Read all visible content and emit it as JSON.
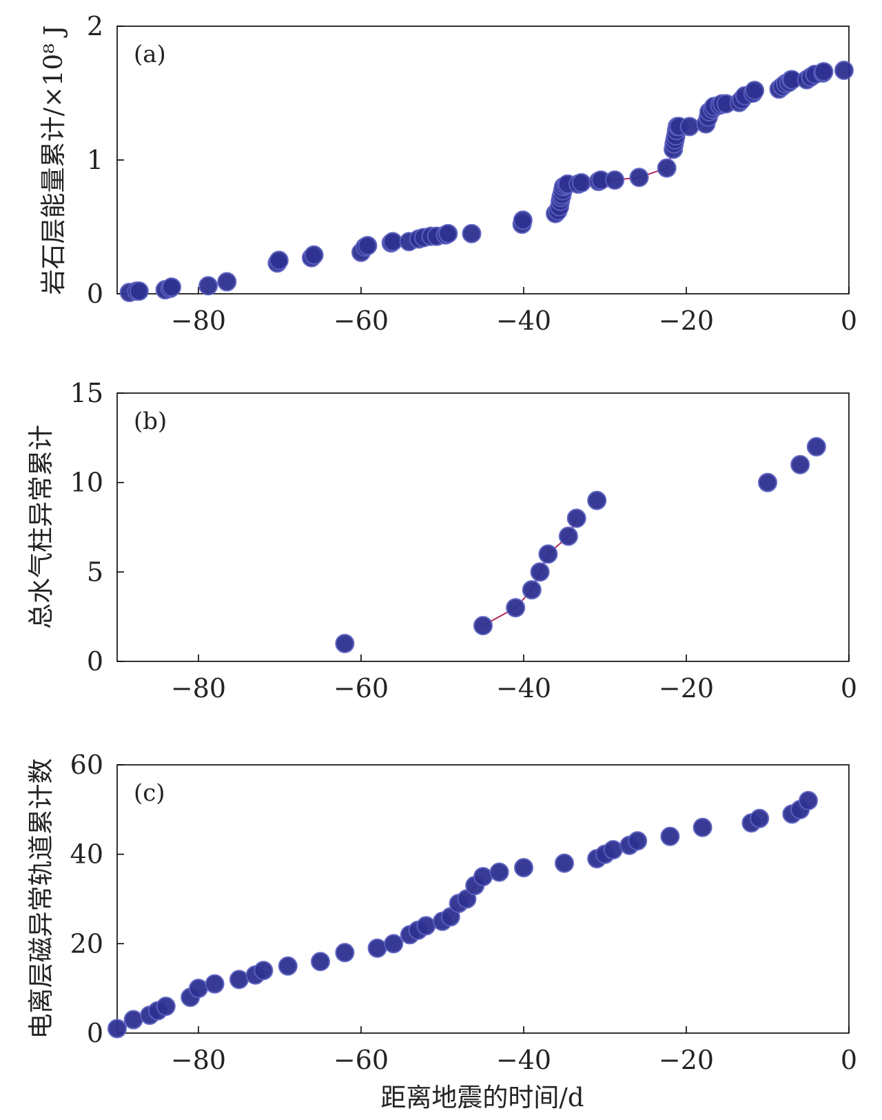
{
  "colors": {
    "marker_fill": "#2e3191",
    "marker_stroke": "#5a5fbf",
    "connector": "#b0285a"
  },
  "chart_data": [
    {
      "type": "scatter",
      "panel_label": "(a)",
      "ylabel": "岩石层能量累计/×10⁸ J",
      "xlabel": "",
      "xlim": [
        -90,
        0
      ],
      "ylim": [
        0,
        2
      ],
      "xticks": [
        -80,
        -60,
        -40,
        -20,
        0
      ],
      "xtick_labels": [
        "−80",
        "−60",
        "−40",
        "−20",
        "0"
      ],
      "yticks": [
        0,
        1,
        2
      ],
      "ytick_labels": [
        "0",
        "1",
        "2"
      ],
      "connected_segment": {
        "x_from": -35.5,
        "x_to": -21.5
      },
      "series": [
        {
          "x": [
            -88.5,
            -87.6,
            -87.3,
            -84.1,
            -83.5,
            -83.3,
            -78.8,
            -76.5,
            -70.3,
            -70.1,
            -66.1,
            -65.8,
            -60,
            -59.5,
            -59.2,
            -56.3,
            -56.1,
            -54.1,
            -52.9,
            -52.3,
            -51.4,
            -50.7,
            -49.6,
            -49.3,
            -46.4,
            -40.2,
            -40.1,
            -36.1,
            -35.8,
            -35.6,
            -35.5,
            -35.4,
            -35.3,
            -35.2,
            -35.1,
            -34.8,
            -34.6,
            -33.3,
            -32.9,
            -30.8,
            -30.5,
            -28.8,
            -25.8,
            -22.4,
            -21.6,
            -21.5,
            -21.4,
            -21.3,
            -21.2,
            -21.1,
            -20.9,
            -19.6,
            -17.6,
            -17.3,
            -17.2,
            -16.8,
            -16.6,
            -15.9,
            -15.6,
            -15.1,
            -13.5,
            -13.2,
            -12.8,
            -11.8,
            -11.6,
            -8.6,
            -8.2,
            -7.8,
            -7.4,
            -7.1,
            -7,
            -5.2,
            -4.7,
            -4.2,
            -3.2,
            -3.1,
            -0.6
          ],
          "y": [
            0.01,
            0.02,
            0.02,
            0.03,
            0.04,
            0.05,
            0.06,
            0.09,
            0.23,
            0.25,
            0.27,
            0.29,
            0.31,
            0.35,
            0.36,
            0.38,
            0.39,
            0.39,
            0.41,
            0.42,
            0.43,
            0.43,
            0.44,
            0.45,
            0.45,
            0.52,
            0.55,
            0.6,
            0.62,
            0.65,
            0.69,
            0.72,
            0.74,
            0.77,
            0.8,
            0.81,
            0.82,
            0.82,
            0.83,
            0.84,
            0.85,
            0.85,
            0.87,
            0.94,
            1.08,
            1.12,
            1.15,
            1.18,
            1.22,
            1.25,
            1.25,
            1.25,
            1.27,
            1.32,
            1.36,
            1.38,
            1.4,
            1.41,
            1.42,
            1.42,
            1.43,
            1.45,
            1.48,
            1.5,
            1.52,
            1.53,
            1.55,
            1.57,
            1.58,
            1.6,
            1.6,
            1.6,
            1.62,
            1.64,
            1.65,
            1.66,
            1.67
          ]
        }
      ]
    },
    {
      "type": "scatter",
      "panel_label": "(b)",
      "ylabel": "总水气柱异常累计",
      "xlabel": "",
      "xlim": [
        -90,
        0
      ],
      "ylim": [
        0,
        15
      ],
      "xticks": [
        -80,
        -60,
        -40,
        -20,
        0
      ],
      "xtick_labels": [
        "−80",
        "−60",
        "−40",
        "−20",
        "0"
      ],
      "yticks": [
        0,
        5,
        10,
        15
      ],
      "ytick_labels": [
        "0",
        "5",
        "10",
        "15"
      ],
      "connected_segment": {
        "x_from": -45,
        "x_to": -33.5
      },
      "series": [
        {
          "x": [
            -62,
            -45,
            -41,
            -39,
            -38,
            -37,
            -34.5,
            -33.5,
            -31,
            -10,
            -6,
            -4
          ],
          "y": [
            1,
            2,
            3,
            4,
            5,
            6,
            7,
            8,
            9,
            10,
            11,
            12
          ]
        }
      ]
    },
    {
      "type": "scatter",
      "panel_label": "(c)",
      "ylabel": "电离层磁异常轨道累计数",
      "xlabel": "距离地震的时间/d",
      "xlim": [
        -90,
        0
      ],
      "ylim": [
        0,
        60
      ],
      "xticks": [
        -80,
        -60,
        -40,
        -20,
        0
      ],
      "xtick_labels": [
        "−80",
        "−60",
        "−40",
        "−20",
        "0"
      ],
      "yticks": [
        0,
        20,
        40,
        60
      ],
      "ytick_labels": [
        "0",
        "20",
        "40",
        "60"
      ],
      "connected_segment": {
        "x_from": -51,
        "x_to": -45
      },
      "series": [
        {
          "x": [
            -90,
            -88,
            -86,
            -85,
            -84,
            -81,
            -80,
            -78,
            -75,
            -73,
            -72,
            -69,
            -65,
            -62,
            -58,
            -56,
            -54,
            -53,
            -52,
            -50,
            -49,
            -48,
            -47,
            -46,
            -45,
            -43,
            -40,
            -35,
            -31,
            -30,
            -29,
            -27,
            -26,
            -22,
            -18,
            -12,
            -11,
            -7,
            -6,
            -5
          ],
          "y": [
            1,
            3,
            4,
            5,
            6,
            8,
            10,
            11,
            12,
            13,
            14,
            15,
            16,
            18,
            19,
            20,
            22,
            23,
            24,
            25,
            26,
            29,
            30,
            33,
            35,
            36,
            37,
            38,
            39,
            40,
            41,
            42,
            43,
            44,
            46,
            47,
            48,
            49,
            50,
            52
          ]
        }
      ]
    }
  ]
}
